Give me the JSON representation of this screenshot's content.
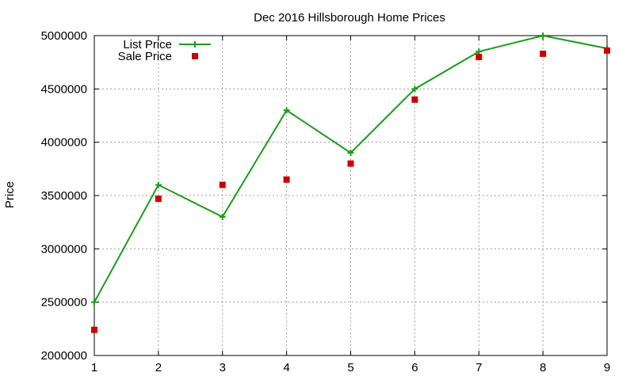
{
  "chart_data": {
    "type": "line",
    "title": "Dec 2016 Hillsborough Home Prices",
    "xlabel": "",
    "ylabel": "Price",
    "x": [
      1,
      2,
      3,
      4,
      5,
      6,
      7,
      8,
      9
    ],
    "xlim": [
      1,
      9
    ],
    "ylim": [
      2000000,
      5000000
    ],
    "xticks": [
      "1",
      "2",
      "3",
      "4",
      "5",
      "6",
      "7",
      "8",
      "9"
    ],
    "yticks": [
      "2000000",
      "2500000",
      "3000000",
      "3500000",
      "4000000",
      "4500000",
      "5000000"
    ],
    "grid": true,
    "legend_position": "top-left",
    "series": [
      {
        "name": "List Price",
        "style": "line-with-plus-markers",
        "color": "#1a9e1a",
        "values": [
          2500000,
          3600000,
          3300000,
          4300000,
          3900000,
          4500000,
          4850000,
          5000000,
          4880000
        ]
      },
      {
        "name": "Sale Price",
        "style": "square-markers",
        "color": "#cc0000",
        "values": [
          2240000,
          3470000,
          3600000,
          3650000,
          3800000,
          4400000,
          4800000,
          4830000,
          4860000
        ]
      }
    ]
  }
}
